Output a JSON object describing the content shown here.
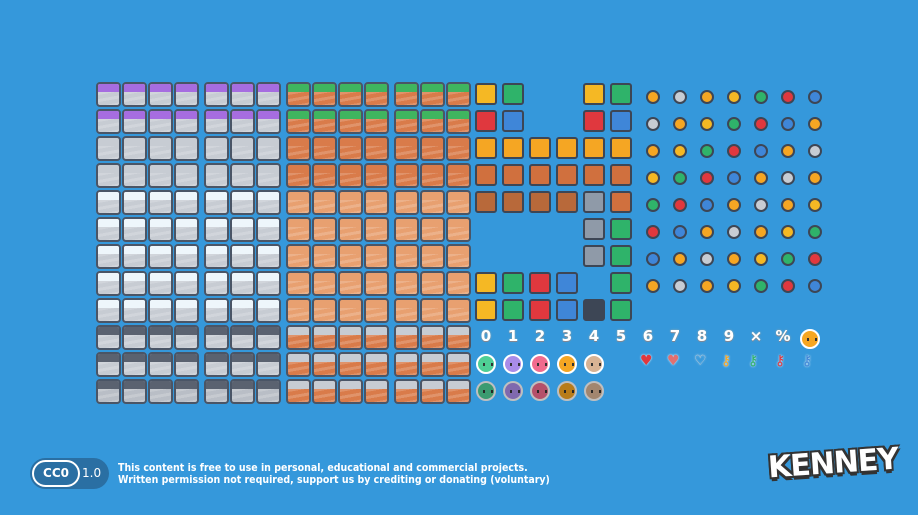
{
  "colors": {
    "background": "#3598db",
    "purple": "#a66de0",
    "stone": "#c7ccd3",
    "snow": "#eef6fb",
    "dark_stone": "#5a6270",
    "grass": "#3fb55f",
    "dirt": "#d97b4a",
    "sand": "#e8a070"
  },
  "numbers": [
    "0",
    "1",
    "2",
    "3",
    "4",
    "5",
    "6",
    "7",
    "8",
    "9",
    "×",
    "%"
  ],
  "faces": {
    "colors": [
      "#4fcf95",
      "#a98ce8",
      "#f06b8e",
      "#f5a623",
      "#d8b394"
    ]
  },
  "hud_icons": [
    "heart-full-icon",
    "heart-half-icon",
    "heart-empty-icon",
    "key-yellow-icon",
    "key-green-icon",
    "key-red-icon",
    "key-blue-icon"
  ],
  "footer": {
    "license_badge": "CC0",
    "license_version": "1.0",
    "line1": "This content is free to use in personal, educational and commercial projects.",
    "line2": "Written permission not required, support us by crediting or donating (voluntary)",
    "logo": "KENNEY"
  }
}
